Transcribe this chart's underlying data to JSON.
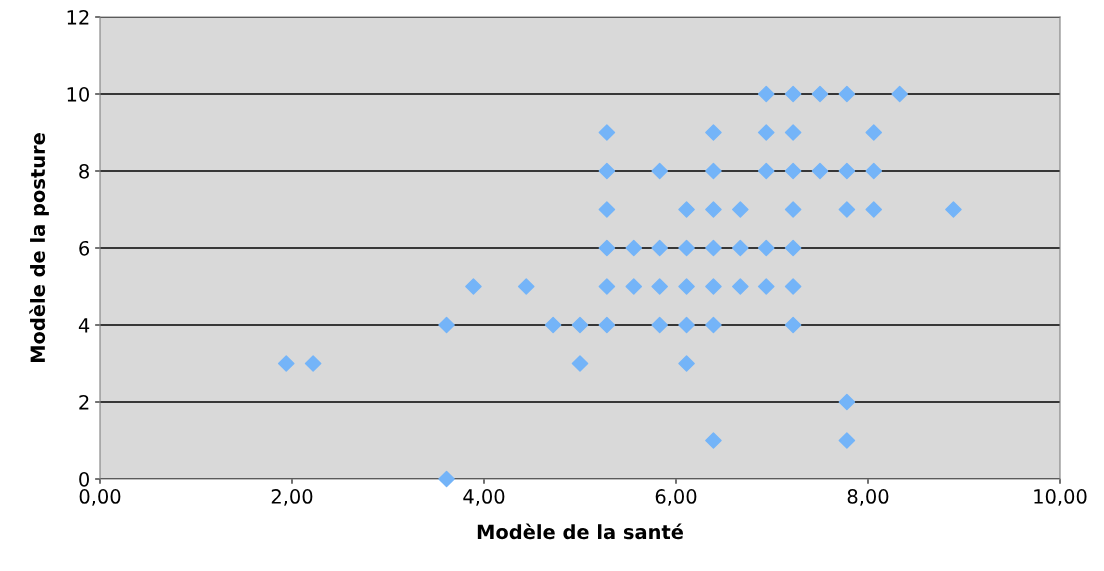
{
  "chart_data": {
    "type": "scatter",
    "xlabel": "Modèle de la santé",
    "ylabel": "Modèle de la posture",
    "xlim": [
      0,
      10
    ],
    "ylim": [
      0,
      12
    ],
    "xticks": [
      {
        "value": 0,
        "label": "0,00"
      },
      {
        "value": 2,
        "label": "2,00"
      },
      {
        "value": 4,
        "label": "4,00"
      },
      {
        "value": 6,
        "label": "6,00"
      },
      {
        "value": 8,
        "label": "8,00"
      },
      {
        "value": 10,
        "label": "10,00"
      }
    ],
    "yticks": [
      0,
      2,
      4,
      6,
      8,
      10,
      12
    ],
    "grid": "y",
    "marker": "diamond",
    "series": [
      {
        "color": "#74b4f8",
        "x": [
          1.94,
          2.22,
          3.61,
          3.61,
          3.89,
          4.44,
          4.72,
          5.0,
          5.0,
          5.28,
          5.28,
          5.28,
          5.28,
          5.28,
          5.28,
          5.56,
          5.56,
          5.83,
          5.83,
          5.83,
          5.83,
          6.11,
          6.11,
          6.11,
          6.11,
          6.11,
          6.39,
          6.39,
          6.39,
          6.39,
          6.39,
          6.39,
          6.39,
          6.67,
          6.67,
          6.67,
          6.94,
          6.94,
          6.94,
          6.94,
          6.94,
          7.22,
          7.22,
          7.22,
          7.22,
          7.22,
          7.22,
          7.22,
          7.5,
          7.5,
          7.78,
          7.78,
          7.78,
          7.78,
          7.78,
          8.06,
          8.06,
          8.06,
          8.33,
          8.89
        ],
        "values": [
          3,
          3,
          4,
          0,
          5,
          5,
          4,
          4,
          3,
          9,
          8,
          7,
          6,
          5,
          4,
          6,
          5,
          8,
          6,
          5,
          4,
          7,
          6,
          5,
          4,
          3,
          9,
          8,
          7,
          6,
          5,
          4,
          1,
          7,
          6,
          5,
          10,
          9,
          8,
          6,
          5,
          10,
          9,
          8,
          7,
          6,
          5,
          4,
          10,
          8,
          10,
          8,
          7,
          2,
          1,
          9,
          8,
          7,
          10,
          7
        ]
      }
    ]
  }
}
